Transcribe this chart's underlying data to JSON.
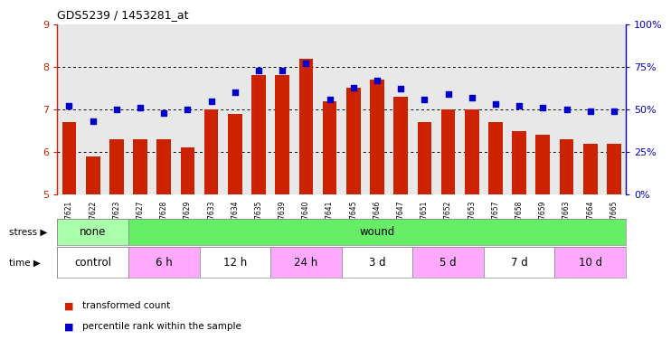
{
  "title": "GDS5239 / 1453281_at",
  "samples": [
    "GSM567621",
    "GSM567622",
    "GSM567623",
    "GSM567627",
    "GSM567628",
    "GSM567629",
    "GSM567633",
    "GSM567634",
    "GSM567635",
    "GSM567639",
    "GSM567640",
    "GSM567641",
    "GSM567645",
    "GSM567646",
    "GSM567647",
    "GSM567651",
    "GSM567652",
    "GSM567653",
    "GSM567657",
    "GSM567658",
    "GSM567659",
    "GSM567663",
    "GSM567664",
    "GSM567665"
  ],
  "bar_values": [
    6.7,
    5.9,
    6.3,
    6.3,
    6.3,
    6.1,
    7.0,
    6.9,
    7.8,
    7.8,
    8.2,
    7.2,
    7.5,
    7.7,
    7.3,
    6.7,
    7.0,
    7.0,
    6.7,
    6.5,
    6.4,
    6.3,
    6.2,
    6.2
  ],
  "dot_values": [
    52,
    43,
    50,
    51,
    48,
    50,
    55,
    60,
    73,
    73,
    77,
    56,
    63,
    67,
    62,
    56,
    59,
    57,
    53,
    52,
    51,
    50,
    49,
    49
  ],
  "bar_color": "#cc2200",
  "dot_color": "#0000cc",
  "ymin": 5,
  "ymax": 9,
  "yticks_left": [
    5,
    6,
    7,
    8,
    9
  ],
  "yticks_right": [
    0,
    25,
    50,
    75,
    100
  ],
  "ytick_labels_right": [
    "0%",
    "25%",
    "50%",
    "75%",
    "100%"
  ],
  "hlines": [
    6,
    7,
    8
  ],
  "stress_data": [
    {
      "label": "none",
      "start": 0,
      "end": 3,
      "color": "#aaffaa"
    },
    {
      "label": "wound",
      "start": 3,
      "end": 24,
      "color": "#66ee66"
    }
  ],
  "time_data": [
    {
      "label": "control",
      "start": 0,
      "end": 3,
      "color": "#ffffff"
    },
    {
      "label": "6 h",
      "start": 3,
      "end": 6,
      "color": "#ffaaff"
    },
    {
      "label": "12 h",
      "start": 6,
      "end": 9,
      "color": "#ffffff"
    },
    {
      "label": "24 h",
      "start": 9,
      "end": 12,
      "color": "#ffaaff"
    },
    {
      "label": "3 d",
      "start": 12,
      "end": 15,
      "color": "#ffffff"
    },
    {
      "label": "5 d",
      "start": 15,
      "end": 18,
      "color": "#ffaaff"
    },
    {
      "label": "7 d",
      "start": 18,
      "end": 21,
      "color": "#ffffff"
    },
    {
      "label": "10 d",
      "start": 21,
      "end": 24,
      "color": "#ffaaff"
    }
  ],
  "legend_colors": [
    "#cc2200",
    "#0000cc"
  ],
  "legend_labels": [
    "transformed count",
    "percentile rank within the sample"
  ],
  "bg_color": "#e8e8e8",
  "fig_width": 7.31,
  "fig_height": 3.84,
  "dpi": 100
}
